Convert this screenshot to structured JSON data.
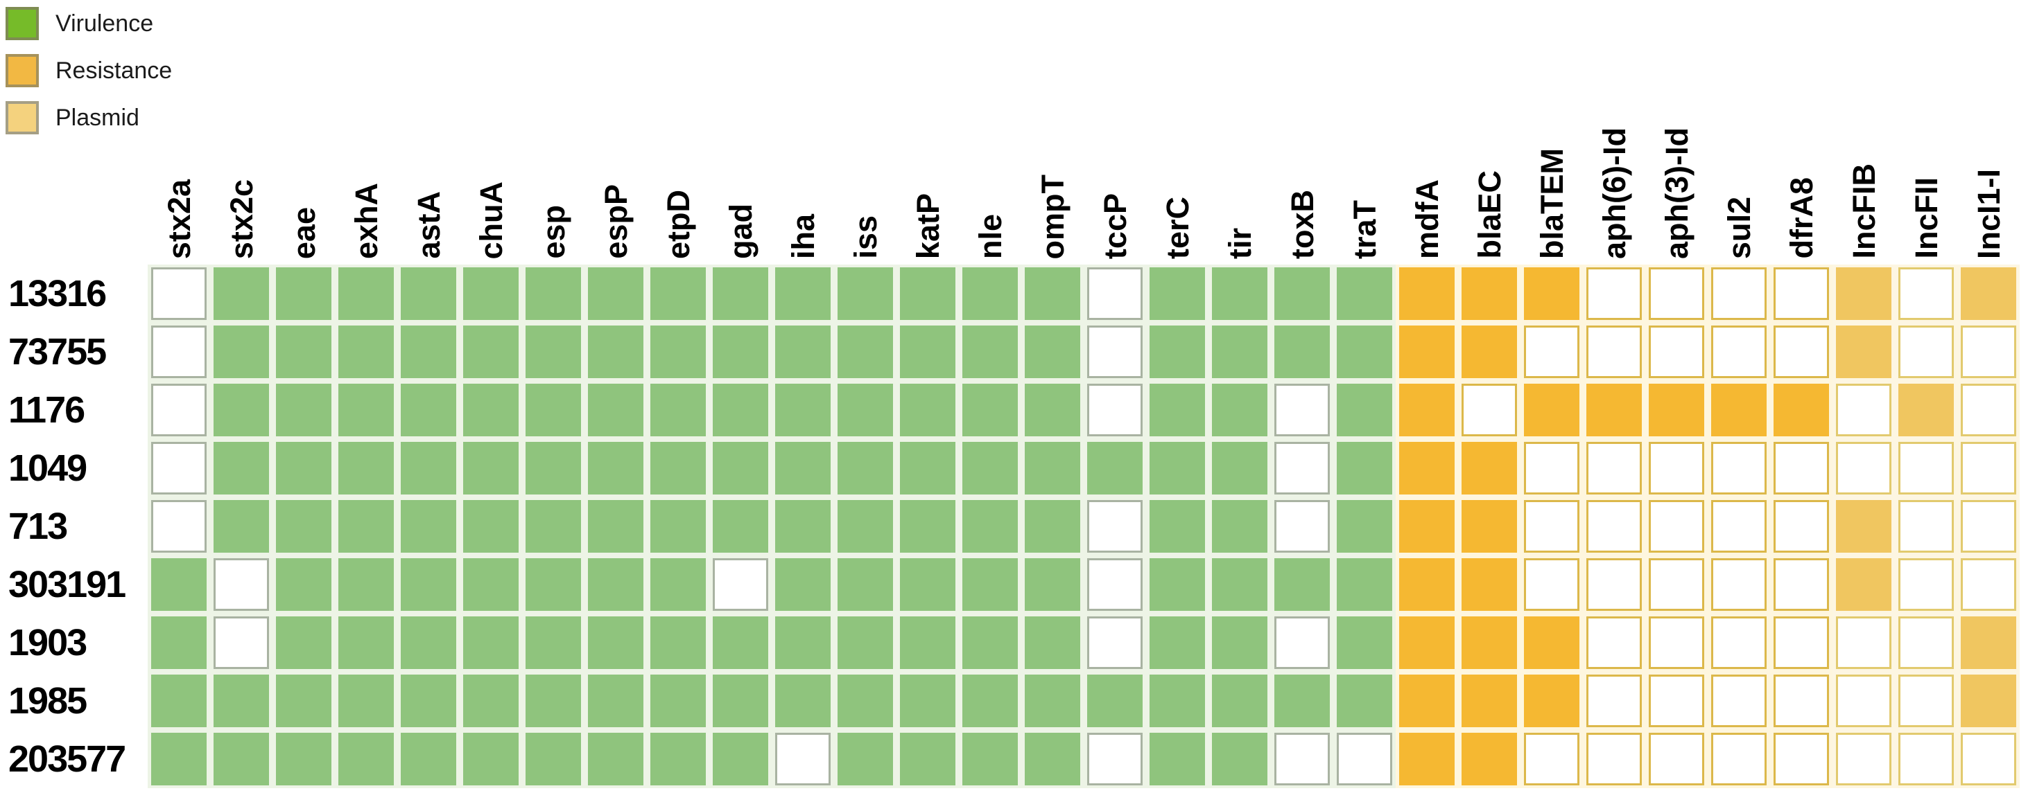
{
  "chart_data": {
    "type": "heatmap",
    "title": "",
    "legend": [
      {
        "label": "Virulence",
        "category": "virulence",
        "swatch_fill": "#76BB29",
        "swatch_border": "#7E8C52"
      },
      {
        "label": "Resistance",
        "category": "resistance",
        "swatch_fill": "#F2B843",
        "swatch_border": "#A6925B"
      },
      {
        "label": "Plasmid",
        "category": "plasmid",
        "swatch_fill": "#F4D27E",
        "swatch_border": "#A59F85"
      }
    ],
    "columns": [
      {
        "label": "stx2a",
        "category": "virulence"
      },
      {
        "label": "stx2c",
        "category": "virulence"
      },
      {
        "label": "eae",
        "category": "virulence"
      },
      {
        "label": "exhA",
        "category": "virulence"
      },
      {
        "label": "astA",
        "category": "virulence"
      },
      {
        "label": "chuA",
        "category": "virulence"
      },
      {
        "label": "esp",
        "category": "virulence"
      },
      {
        "label": "espP",
        "category": "virulence"
      },
      {
        "label": "etpD",
        "category": "virulence"
      },
      {
        "label": "gad",
        "category": "virulence"
      },
      {
        "label": "iha",
        "category": "virulence"
      },
      {
        "label": "iss",
        "category": "virulence"
      },
      {
        "label": "katP",
        "category": "virulence"
      },
      {
        "label": "nle",
        "category": "virulence"
      },
      {
        "label": "ompT",
        "category": "virulence"
      },
      {
        "label": "tccP",
        "category": "virulence"
      },
      {
        "label": "terC",
        "category": "virulence"
      },
      {
        "label": "tir",
        "category": "virulence"
      },
      {
        "label": "toxB",
        "category": "virulence"
      },
      {
        "label": "traT",
        "category": "virulence"
      },
      {
        "label": "mdfA",
        "category": "resistance"
      },
      {
        "label": "blaEC",
        "category": "resistance"
      },
      {
        "label": "blaTEM",
        "category": "resistance"
      },
      {
        "label": "aph(6)-Id",
        "category": "resistance"
      },
      {
        "label": "aph(3)-Id",
        "category": "resistance"
      },
      {
        "label": "sul2",
        "category": "resistance"
      },
      {
        "label": "dfrA8",
        "category": "resistance"
      },
      {
        "label": "IncFIB",
        "category": "plasmid"
      },
      {
        "label": "IncFII",
        "category": "plasmid"
      },
      {
        "label": "IncI1-I",
        "category": "plasmid"
      }
    ],
    "rows": [
      {
        "label": "13316",
        "values": [
          0,
          1,
          1,
          1,
          1,
          1,
          1,
          1,
          1,
          1,
          1,
          1,
          1,
          1,
          1,
          0,
          1,
          1,
          1,
          1,
          1,
          1,
          1,
          0,
          0,
          0,
          0,
          1,
          0,
          1
        ]
      },
      {
        "label": "73755",
        "values": [
          0,
          1,
          1,
          1,
          1,
          1,
          1,
          1,
          1,
          1,
          1,
          1,
          1,
          1,
          1,
          0,
          1,
          1,
          1,
          1,
          1,
          1,
          0,
          0,
          0,
          0,
          0,
          1,
          0,
          0
        ]
      },
      {
        "label": "1176",
        "values": [
          0,
          1,
          1,
          1,
          1,
          1,
          1,
          1,
          1,
          1,
          1,
          1,
          1,
          1,
          1,
          0,
          1,
          1,
          0,
          1,
          1,
          0,
          1,
          1,
          1,
          1,
          1,
          0,
          1,
          0
        ]
      },
      {
        "label": "1049",
        "values": [
          0,
          1,
          1,
          1,
          1,
          1,
          1,
          1,
          1,
          1,
          1,
          1,
          1,
          1,
          1,
          1,
          1,
          1,
          0,
          1,
          1,
          1,
          0,
          0,
          0,
          0,
          0,
          0,
          0,
          0
        ]
      },
      {
        "label": "713",
        "values": [
          0,
          1,
          1,
          1,
          1,
          1,
          1,
          1,
          1,
          1,
          1,
          1,
          1,
          1,
          1,
          0,
          1,
          1,
          0,
          1,
          1,
          1,
          0,
          0,
          0,
          0,
          0,
          1,
          0,
          0
        ]
      },
      {
        "label": "303191",
        "values": [
          1,
          0,
          1,
          1,
          1,
          1,
          1,
          1,
          1,
          0,
          1,
          1,
          1,
          1,
          1,
          0,
          1,
          1,
          1,
          1,
          1,
          1,
          0,
          0,
          0,
          0,
          0,
          1,
          0,
          0
        ]
      },
      {
        "label": "1903",
        "values": [
          1,
          0,
          1,
          1,
          1,
          1,
          1,
          1,
          1,
          1,
          1,
          1,
          1,
          1,
          1,
          0,
          1,
          1,
          0,
          1,
          1,
          1,
          1,
          0,
          0,
          0,
          0,
          0,
          0,
          1
        ]
      },
      {
        "label": "1985",
        "values": [
          1,
          1,
          1,
          1,
          1,
          1,
          1,
          1,
          1,
          1,
          1,
          1,
          1,
          1,
          1,
          1,
          1,
          1,
          1,
          1,
          1,
          1,
          1,
          0,
          0,
          0,
          0,
          0,
          0,
          1
        ]
      },
      {
        "label": "203577",
        "values": [
          1,
          1,
          1,
          1,
          1,
          1,
          1,
          1,
          1,
          1,
          0,
          1,
          1,
          1,
          1,
          0,
          1,
          1,
          0,
          0,
          1,
          1,
          0,
          0,
          0,
          0,
          0,
          0,
          0,
          0
        ]
      }
    ],
    "value_encoding": {
      "1": "present (filled cell)",
      "0": "absent (empty cell)"
    },
    "layout": {
      "legend_position": "top-left",
      "column_labels": "rotated-90",
      "grid": "9 rows x 30 columns"
    }
  },
  "colors": {
    "virulence_fill": "#8FC47D",
    "resistance_fill": "#F5B832",
    "plasmid_fill": "#F0C660",
    "virulence_empty_border": "#A9B3A2",
    "resistance_empty_border": "#DCB84A",
    "plasmid_empty_border": "#E2CA6E",
    "halo_virulence": "#EDF4E6",
    "halo_resistance": "#FEF6DE",
    "halo_plasmid": "#FDF6E2"
  }
}
